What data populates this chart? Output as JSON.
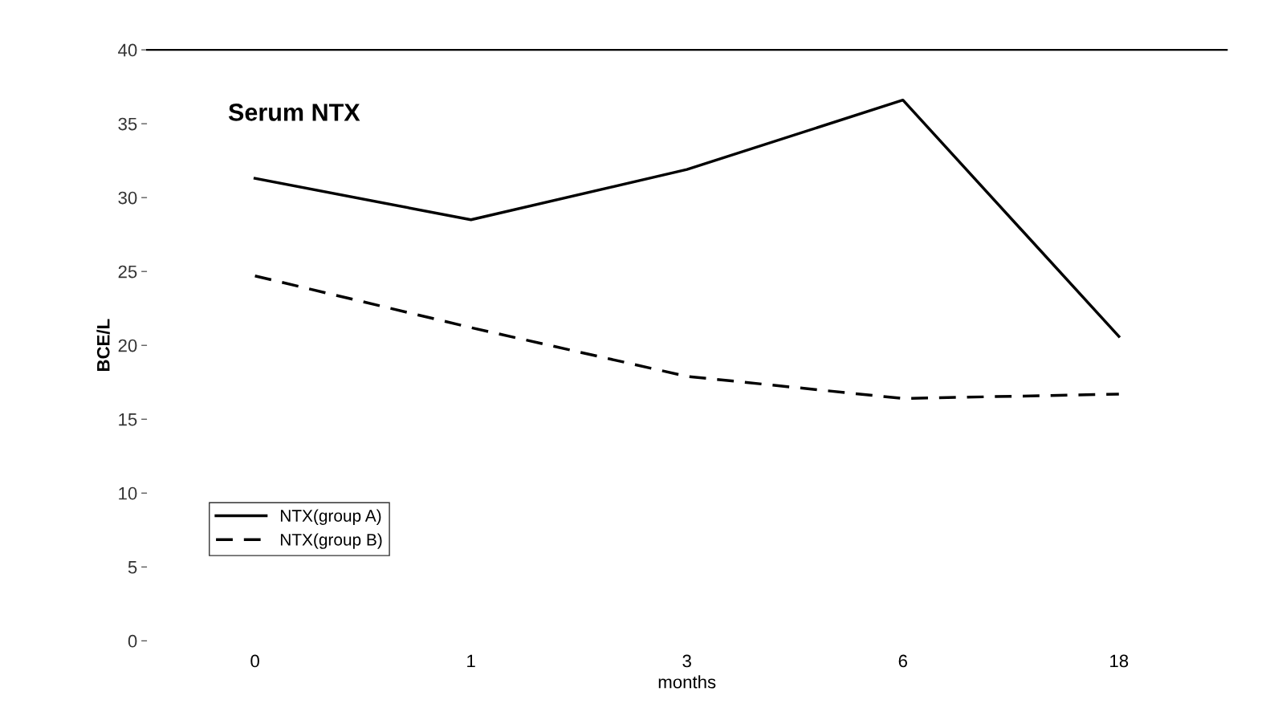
{
  "chart_data": {
    "type": "line",
    "title": "Serum NTX",
    "xlabel": "months",
    "ylabel": "BCE/L",
    "categories": [
      "0",
      "1",
      "3",
      "6",
      "18"
    ],
    "series": [
      {
        "name": "NTX(group A)",
        "color": "#000000",
        "values": [
          31.3,
          28.5,
          31.9,
          36.6,
          20.6
        ],
        "line_style": "solid"
      },
      {
        "name": "NTX(group B)",
        "color": "#000000",
        "values": [
          24.7,
          21.2,
          17.9,
          16.4,
          16.7
        ],
        "line_style": "dashed"
      }
    ],
    "ylim": [
      0,
      40
    ],
    "yticks": [
      0,
      5,
      10,
      15,
      20,
      25,
      30,
      35,
      40
    ],
    "grid": false,
    "legend": "bottom left",
    "marker": "none"
  }
}
